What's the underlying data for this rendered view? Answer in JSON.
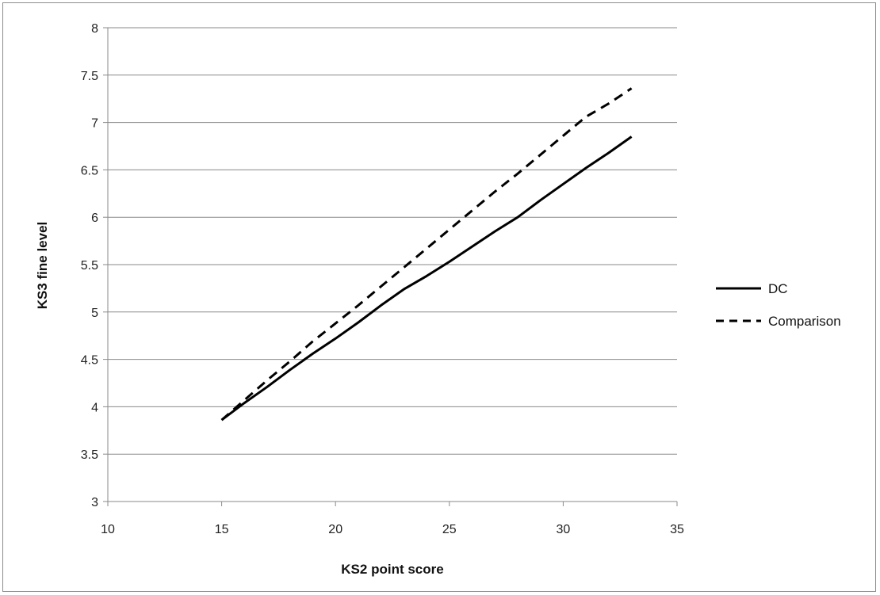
{
  "chart_data": {
    "type": "line",
    "title": "",
    "xlabel": "KS2 point score",
    "ylabel": "KS3 fine level",
    "xlim": [
      10,
      35
    ],
    "ylim": [
      3,
      8
    ],
    "x_ticks": [
      "10",
      "15",
      "20",
      "25",
      "30",
      "35"
    ],
    "y_ticks": [
      "3",
      "3.5",
      "4",
      "4.5",
      "5",
      "5.5",
      "6",
      "6.5",
      "7",
      "7.5",
      "8"
    ],
    "grid": "horizontal",
    "legend_position": "right",
    "series": [
      {
        "name": "DC",
        "style": "solid",
        "color": "#000000",
        "points": [
          [
            15,
            3.86
          ],
          [
            16,
            4.04
          ],
          [
            17,
            4.21
          ],
          [
            18,
            4.39
          ],
          [
            19,
            4.56
          ],
          [
            20,
            4.72
          ],
          [
            21,
            4.89
          ],
          [
            22,
            5.07
          ],
          [
            23,
            5.24
          ],
          [
            24,
            5.38
          ],
          [
            25,
            5.53
          ],
          [
            26,
            5.69
          ],
          [
            27,
            5.85
          ],
          [
            28,
            6.0
          ],
          [
            29,
            6.18
          ],
          [
            30,
            6.35
          ],
          [
            31,
            6.52
          ],
          [
            32,
            6.68
          ],
          [
            33,
            6.85
          ]
        ]
      },
      {
        "name": "Comparison",
        "style": "dashed",
        "color": "#000000",
        "points": [
          [
            15,
            3.86
          ],
          [
            16,
            4.07
          ],
          [
            17,
            4.28
          ],
          [
            18,
            4.48
          ],
          [
            19,
            4.69
          ],
          [
            20,
            4.88
          ],
          [
            21,
            5.07
          ],
          [
            22,
            5.27
          ],
          [
            23,
            5.47
          ],
          [
            24,
            5.67
          ],
          [
            25,
            5.87
          ],
          [
            26,
            6.07
          ],
          [
            27,
            6.27
          ],
          [
            28,
            6.46
          ],
          [
            29,
            6.66
          ],
          [
            30,
            6.86
          ],
          [
            31,
            7.06
          ],
          [
            32,
            7.2
          ],
          [
            33,
            7.36
          ]
        ]
      }
    ]
  }
}
